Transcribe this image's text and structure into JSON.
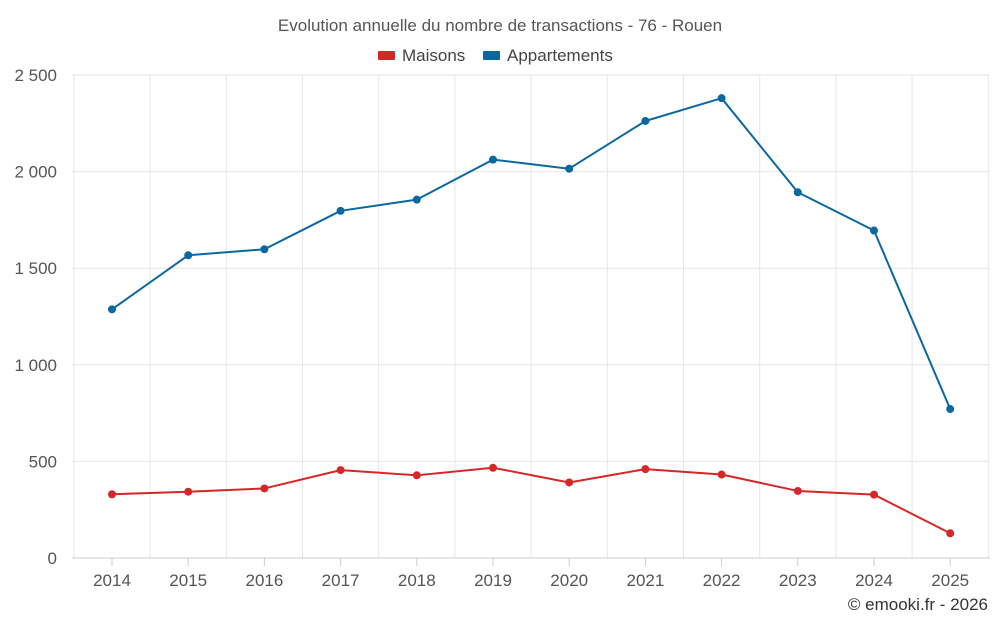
{
  "chart_data": {
    "type": "line",
    "title": "Evolution annuelle du nombre de transactions - 76 - Rouen",
    "categories": [
      "2014",
      "2015",
      "2016",
      "2017",
      "2018",
      "2019",
      "2020",
      "2021",
      "2022",
      "2023",
      "2024",
      "2025"
    ],
    "series": [
      {
        "name": "Maisons",
        "color": "#d62728",
        "values": [
          330,
          343,
          360,
          455,
          428,
          467,
          391,
          460,
          432,
          347,
          328,
          128
        ]
      },
      {
        "name": "Appartements",
        "color": "#0b67a0",
        "values": [
          1287,
          1567,
          1598,
          1797,
          1855,
          2062,
          2015,
          2262,
          2380,
          1893,
          1695,
          771
        ]
      }
    ],
    "ylim": [
      0,
      2500
    ],
    "yticks": [
      0,
      500,
      1000,
      1500,
      2000,
      2500
    ],
    "ytick_labels": [
      "0",
      "500",
      "1 000",
      "1 500",
      "2 000",
      "2 500"
    ],
    "legend_position": "top-center",
    "grid": true,
    "xlabel": "",
    "ylabel": ""
  },
  "credit": "© emooki.fr - 2026"
}
